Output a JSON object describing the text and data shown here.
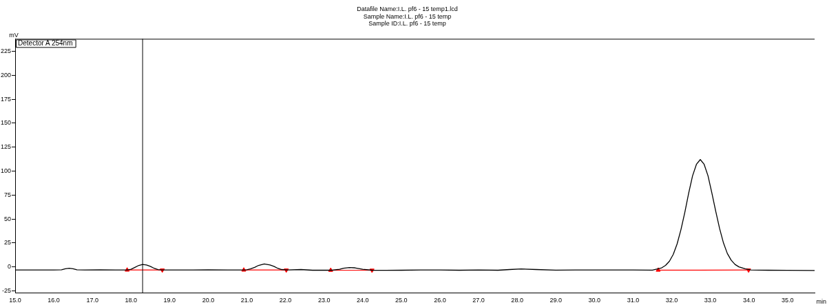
{
  "chart_data": {
    "type": "line",
    "title": "Datafile Name:I.L. pf6 - 15 temp1.lcd",
    "subtitle": "Sample Name:I.L. pf6 - 15 temp\nSample ID:I.L. pf6 - 15 temp",
    "xlabel": "min",
    "ylabel": "mV",
    "xlim": [
      15,
      35.7
    ],
    "ylim": [
      -27,
      238
    ],
    "xticks": [
      {
        "value": 15,
        "label": "15.0"
      },
      {
        "value": 16,
        "label": "16.0"
      },
      {
        "value": 17,
        "label": "17.0"
      },
      {
        "value": 18,
        "label": "18.0"
      },
      {
        "value": 19,
        "label": "19.0"
      },
      {
        "value": 20,
        "label": "20.0"
      },
      {
        "value": 21,
        "label": "21.0"
      },
      {
        "value": 22,
        "label": "22.0"
      },
      {
        "value": 23,
        "label": "23.0"
      },
      {
        "value": 24,
        "label": "24.0"
      },
      {
        "value": 25,
        "label": "25.0"
      },
      {
        "value": 26,
        "label": "26.0"
      },
      {
        "value": 27,
        "label": "27.0"
      },
      {
        "value": 28,
        "label": "28.0"
      },
      {
        "value": 29,
        "label": "29.0"
      },
      {
        "value": 30,
        "label": "30.0"
      },
      {
        "value": 31,
        "label": "31.0"
      },
      {
        "value": 32,
        "label": "32.0"
      },
      {
        "value": 33,
        "label": "33.0"
      },
      {
        "value": 34,
        "label": "34.0"
      },
      {
        "value": 35,
        "label": "35.0"
      }
    ],
    "yticks": [
      -25,
      0,
      25,
      50,
      75,
      100,
      125,
      150,
      175,
      200,
      225
    ],
    "grid": false,
    "legend": "top left",
    "marker": "none",
    "line_style": "solid",
    "ref_lines": [
      {
        "axis": "x",
        "value": 18.3,
        "color": "#000000"
      }
    ],
    "series": [
      {
        "name": "Detector A 254nm",
        "color": "#000000",
        "x": [
          15.0,
          15.5,
          16.0,
          16.2,
          16.3,
          16.4,
          16.5,
          16.6,
          16.8,
          17.2,
          17.6,
          17.9,
          18.0,
          18.1,
          18.2,
          18.3,
          18.4,
          18.5,
          18.6,
          18.7,
          18.8,
          19.2,
          19.6,
          20.0,
          20.5,
          20.9,
          21.0,
          21.1,
          21.2,
          21.3,
          21.45,
          21.6,
          21.7,
          21.8,
          21.9,
          22.05,
          22.4,
          22.7,
          23.2,
          23.4,
          23.5,
          23.65,
          23.8,
          24.0,
          24.25,
          24.6,
          25.0,
          25.5,
          26.0,
          26.5,
          27.0,
          27.5,
          27.8,
          28.1,
          28.5,
          29.0,
          29.5,
          30.0,
          30.5,
          31.0,
          31.5,
          31.74,
          31.84,
          31.94,
          32.04,
          32.14,
          32.24,
          32.34,
          32.44,
          32.54,
          32.64,
          32.74,
          32.84,
          32.94,
          33.04,
          33.14,
          33.24,
          33.34,
          33.44,
          33.54,
          33.64,
          33.74,
          33.9,
          34.05,
          34.5,
          35.0,
          35.7
        ],
        "values": [
          -3.2,
          -3.3,
          -3.2,
          -3,
          -2,
          -1.5,
          -2,
          -3,
          -3.3,
          -3.1,
          -3.3,
          -3.3,
          -2.5,
          -0.5,
          1.5,
          2.5,
          2,
          0.5,
          -1.5,
          -2.8,
          -3.3,
          -3.2,
          -3.3,
          -3.1,
          -3.3,
          -3.3,
          -3,
          -2,
          -0.5,
          1.5,
          3,
          2,
          0.5,
          -1.5,
          -2.8,
          -3.3,
          -2.8,
          -3.5,
          -3.5,
          -2.5,
          -1.5,
          -0.7,
          -1,
          -2.5,
          -3.5,
          -3.6,
          -3.5,
          -3.2,
          -3.3,
          -3.5,
          -3.2,
          -3.5,
          -2.8,
          -2.2,
          -2.8,
          -3.4,
          -3.3,
          -3.3,
          -3.2,
          -3.3,
          -3.4,
          -1,
          1.5,
          5.8,
          13,
          24,
          39,
          57,
          77,
          95,
          107,
          112,
          107,
          95,
          77,
          58,
          40,
          25,
          14,
          7,
          2.5,
          0,
          -2,
          -3.2,
          -3.5,
          -3.6,
          -3.8
        ]
      },
      {
        "type": "line",
        "color": "#ff0000",
        "marker": "triangle",
        "x": [
          17.9,
          18.81
        ],
        "values": [
          -3.3,
          -3.3
        ]
      },
      {
        "type": "line",
        "color": "#ff0000",
        "marker": "triangle",
        "x": [
          20.92,
          22.02
        ],
        "values": [
          -3.3,
          -3.3
        ]
      },
      {
        "type": "line",
        "color": "#ff0000",
        "marker": "triangle",
        "x": [
          23.17,
          24.24
        ],
        "values": [
          -3.5,
          -3.5
        ]
      },
      {
        "type": "line",
        "color": "#ff0000",
        "marker": "triangle",
        "x": [
          31.65,
          33.99
        ],
        "values": [
          -3.4,
          -3.3
        ]
      }
    ]
  }
}
